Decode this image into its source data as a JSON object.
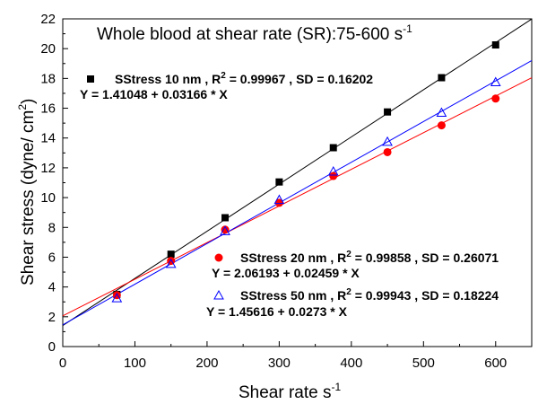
{
  "chart_data": {
    "type": "scatter",
    "title": "Whole blood at shear rate (SR):75-600 s",
    "title_sup": "-1",
    "xlabel": "Shear rate s",
    "xlabel_sup": "-1",
    "ylabel": "Shear stress (dyne/ cm",
    "ylabel_sup": "2",
    "ylabel_end": ")",
    "xlim": [
      0,
      650
    ],
    "ylim": [
      0,
      22
    ],
    "xticks": [
      "0",
      "100",
      "200",
      "300",
      "400",
      "500",
      "600"
    ],
    "yticks": [
      "0",
      "2",
      "4",
      "6",
      "8",
      "10",
      "12",
      "14",
      "16",
      "18",
      "20",
      "22"
    ],
    "x": [
      75,
      150,
      225,
      300,
      375,
      450,
      525,
      600
    ],
    "series": [
      {
        "name": "SStress 10 nm",
        "marker": "square",
        "color": "#000000",
        "values": [
          3.5,
          6.2,
          8.65,
          11.05,
          13.35,
          15.75,
          18.05,
          20.25
        ],
        "fit": {
          "intercept": 1.41048,
          "slope": 0.03166
        },
        "stats_prefix": " , R",
        "stats_sup": "2",
        "stats_suffix": " = 0.99967 ,  SD = 0.16202",
        "equation": "Y = 1.41048 + 0.03166 * X"
      },
      {
        "name": "SStress 20 nm",
        "marker": "circle",
        "color": "#ff0000",
        "values": [
          3.45,
          5.75,
          7.85,
          9.65,
          11.45,
          13.05,
          14.85,
          16.65
        ],
        "fit": {
          "intercept": 2.06193,
          "slope": 0.02459
        },
        "stats_prefix": " , R",
        "stats_sup": "2",
        "stats_suffix": " = 0.99858 ,  SD = 0.26071",
        "equation": "Y = 2.06193 + 0.02459 * X"
      },
      {
        "name": "SStress 50 nm",
        "marker": "triangle",
        "color": "#0000ff",
        "values": [
          3.25,
          5.55,
          7.75,
          9.85,
          11.75,
          13.75,
          15.7,
          17.75
        ],
        "fit": {
          "intercept": 1.45616,
          "slope": 0.0273
        },
        "stats_prefix": " , R",
        "stats_sup": "2",
        "stats_suffix": " = 0.99943 ,  SD = 0.18224",
        "equation": "Y = 1.45616 + 0.0273 * X"
      }
    ]
  }
}
